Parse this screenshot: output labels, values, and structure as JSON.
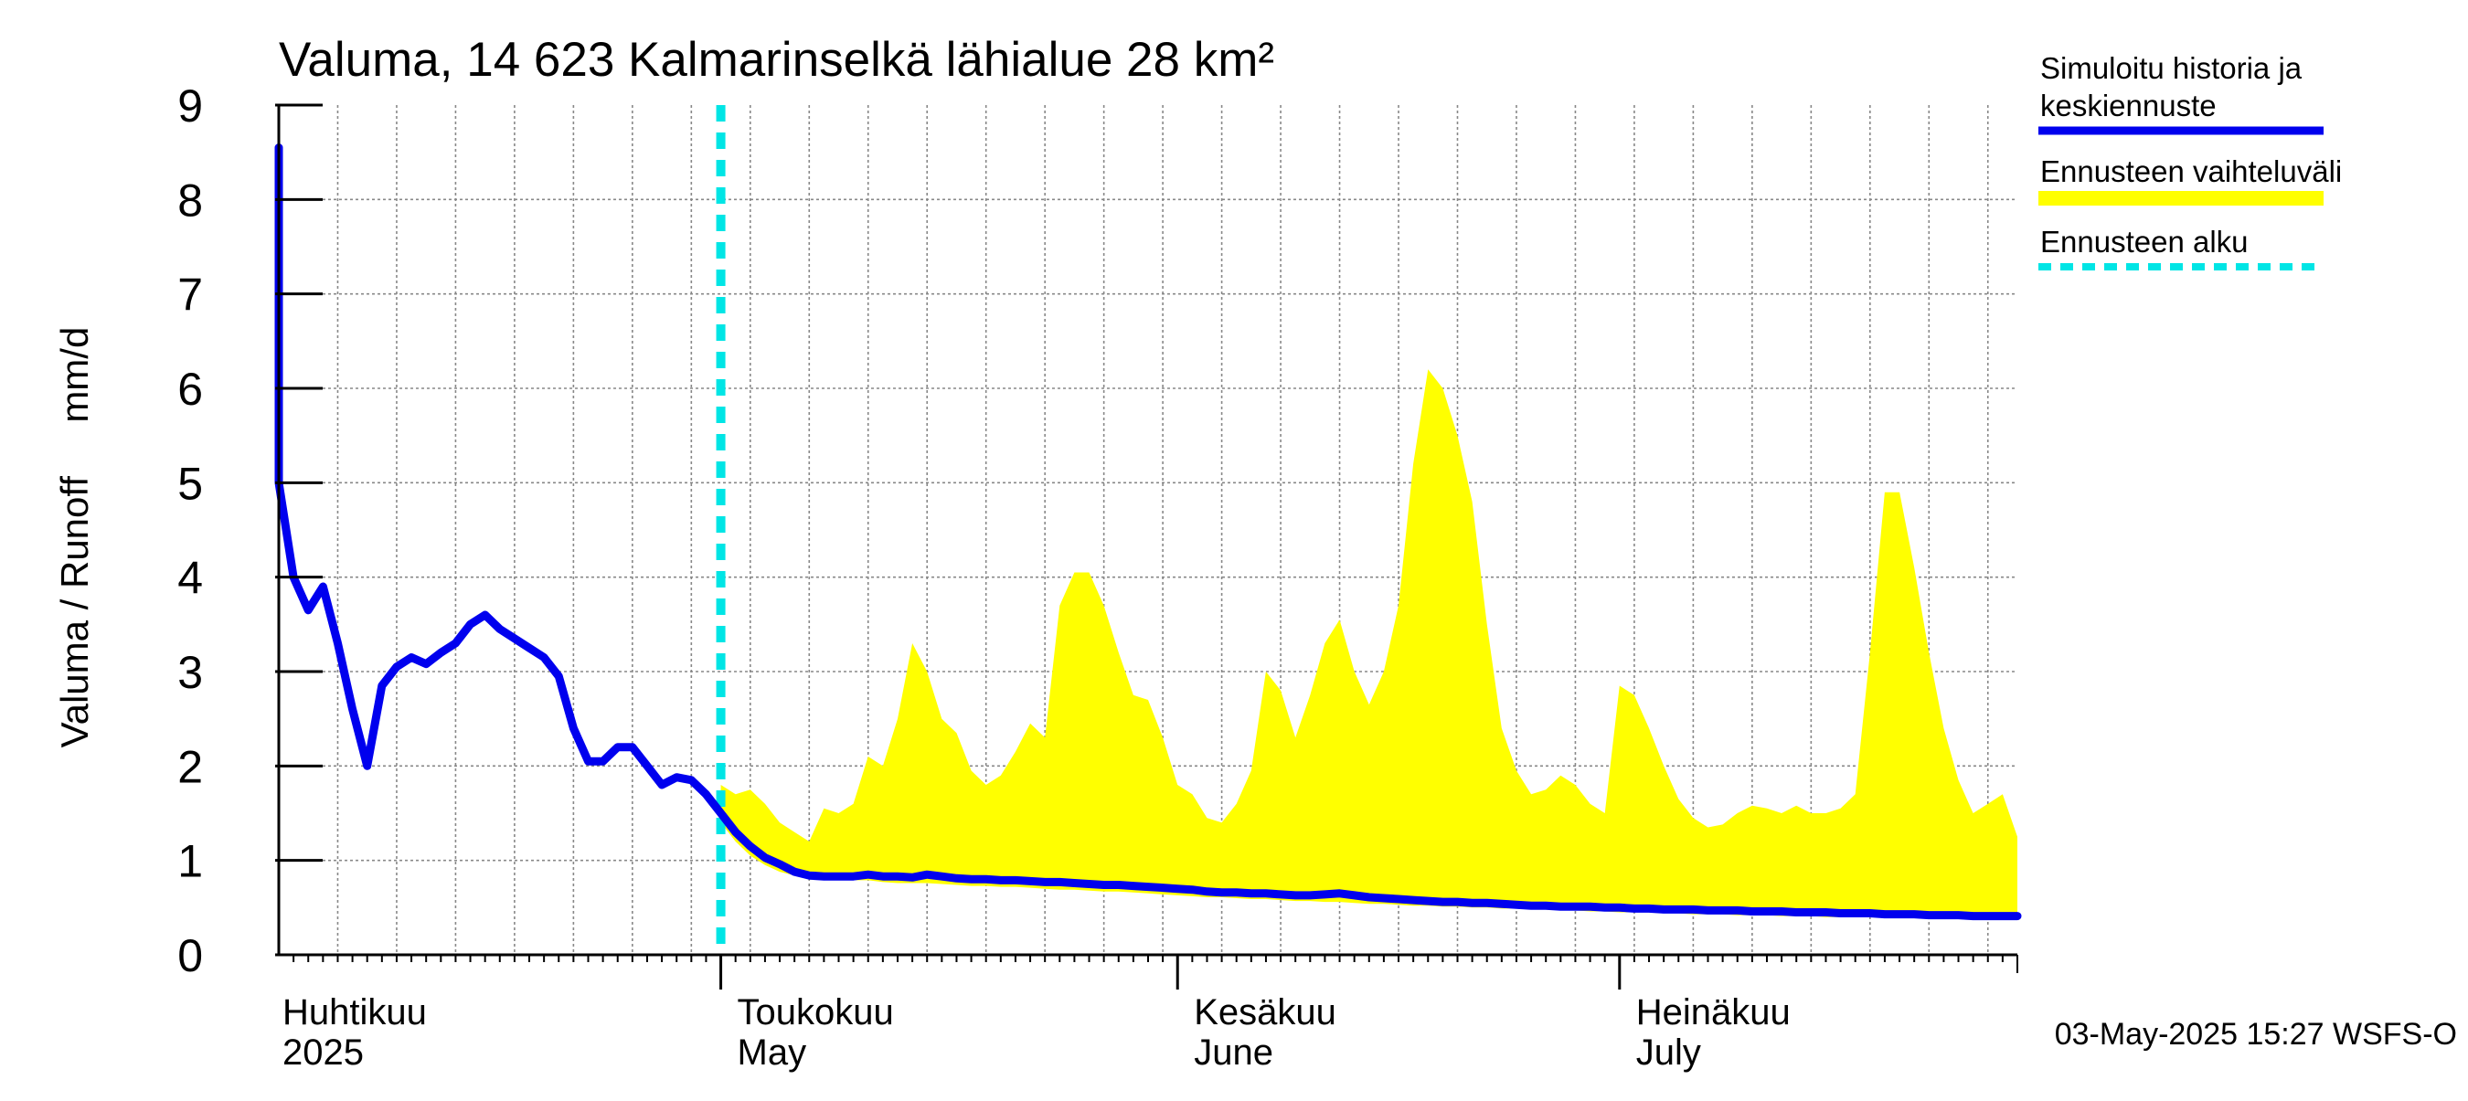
{
  "chart_data": {
    "type": "area",
    "title": "Valuma, 14 623 Kalmarinselkä lähialue 28 km²",
    "ylabel": "Valuma / Runoff     mm/d",
    "ylim": [
      0,
      9
    ],
    "y_ticks": [
      "0",
      "1",
      "2",
      "3",
      "4",
      "5",
      "6",
      "7",
      "8",
      "9"
    ],
    "x_range_days": [
      0,
      118
    ],
    "month_labels": [
      {
        "day": 0,
        "fi": "Huhtikuu",
        "en": "2025"
      },
      {
        "day": 30,
        "fi": "Toukokuu",
        "en": "May"
      },
      {
        "day": 61,
        "fi": "Kesäkuu",
        "en": "June"
      },
      {
        "day": 91,
        "fi": "Heinäkuu",
        "en": "July"
      }
    ],
    "forecast_start_day": 30,
    "series": [
      {
        "name": "Simuloitu historia ja keskiennuste",
        "color": "#0000ee",
        "points": [
          [
            -2,
            8.55
          ],
          [
            0,
            5.0
          ],
          [
            1,
            4.0
          ],
          [
            2,
            3.65
          ],
          [
            3,
            3.9
          ],
          [
            4,
            3.3
          ],
          [
            5,
            2.6
          ],
          [
            6,
            2.0
          ],
          [
            7,
            2.85
          ],
          [
            8,
            3.05
          ],
          [
            9,
            3.15
          ],
          [
            10,
            3.08
          ],
          [
            11,
            3.2
          ],
          [
            12,
            3.3
          ],
          [
            13,
            3.5
          ],
          [
            14,
            3.6
          ],
          [
            15,
            3.45
          ],
          [
            16,
            3.35
          ],
          [
            17,
            3.25
          ],
          [
            18,
            3.15
          ],
          [
            19,
            2.95
          ],
          [
            20,
            2.4
          ],
          [
            21,
            2.05
          ],
          [
            22,
            2.05
          ],
          [
            23,
            2.2
          ],
          [
            24,
            2.2
          ],
          [
            25,
            2.0
          ],
          [
            26,
            1.8
          ],
          [
            27,
            1.88
          ],
          [
            28,
            1.85
          ],
          [
            29,
            1.7
          ],
          [
            30,
            1.5
          ],
          [
            31,
            1.3
          ],
          [
            32,
            1.15
          ],
          [
            33,
            1.03
          ],
          [
            34,
            0.96
          ],
          [
            35,
            0.88
          ],
          [
            36,
            0.84
          ],
          [
            37,
            0.83
          ],
          [
            38,
            0.83
          ],
          [
            39,
            0.83
          ],
          [
            40,
            0.85
          ],
          [
            41,
            0.83
          ],
          [
            42,
            0.83
          ],
          [
            43,
            0.82
          ],
          [
            44,
            0.85
          ],
          [
            45,
            0.83
          ],
          [
            46,
            0.81
          ],
          [
            47,
            0.8
          ],
          [
            48,
            0.8
          ],
          [
            49,
            0.79
          ],
          [
            50,
            0.79
          ],
          [
            51,
            0.78
          ],
          [
            52,
            0.77
          ],
          [
            53,
            0.77
          ],
          [
            54,
            0.76
          ],
          [
            55,
            0.75
          ],
          [
            56,
            0.74
          ],
          [
            57,
            0.74
          ],
          [
            58,
            0.73
          ],
          [
            59,
            0.72
          ],
          [
            60,
            0.71
          ],
          [
            61,
            0.7
          ],
          [
            62,
            0.69
          ],
          [
            63,
            0.67
          ],
          [
            64,
            0.66
          ],
          [
            65,
            0.66
          ],
          [
            66,
            0.65
          ],
          [
            67,
            0.65
          ],
          [
            68,
            0.64
          ],
          [
            69,
            0.63
          ],
          [
            70,
            0.63
          ],
          [
            71,
            0.64
          ],
          [
            72,
            0.65
          ],
          [
            73,
            0.63
          ],
          [
            74,
            0.61
          ],
          [
            75,
            0.6
          ],
          [
            76,
            0.59
          ],
          [
            77,
            0.58
          ],
          [
            78,
            0.57
          ],
          [
            79,
            0.56
          ],
          [
            80,
            0.56
          ],
          [
            81,
            0.55
          ],
          [
            82,
            0.55
          ],
          [
            83,
            0.54
          ],
          [
            84,
            0.53
          ],
          [
            85,
            0.52
          ],
          [
            86,
            0.52
          ],
          [
            87,
            0.51
          ],
          [
            88,
            0.51
          ],
          [
            89,
            0.51
          ],
          [
            90,
            0.5
          ],
          [
            91,
            0.5
          ],
          [
            92,
            0.49
          ],
          [
            93,
            0.49
          ],
          [
            94,
            0.48
          ],
          [
            95,
            0.48
          ],
          [
            96,
            0.48
          ],
          [
            97,
            0.47
          ],
          [
            98,
            0.47
          ],
          [
            99,
            0.47
          ],
          [
            100,
            0.46
          ],
          [
            101,
            0.46
          ],
          [
            102,
            0.46
          ],
          [
            103,
            0.45
          ],
          [
            104,
            0.45
          ],
          [
            105,
            0.45
          ],
          [
            106,
            0.44
          ],
          [
            107,
            0.44
          ],
          [
            108,
            0.44
          ],
          [
            109,
            0.43
          ],
          [
            110,
            0.43
          ],
          [
            111,
            0.43
          ],
          [
            112,
            0.42
          ],
          [
            113,
            0.42
          ],
          [
            114,
            0.42
          ],
          [
            115,
            0.41
          ],
          [
            116,
            0.41
          ],
          [
            117,
            0.41
          ],
          [
            118,
            0.41
          ]
        ]
      },
      {
        "name": "Ennusteen vaihteluväli",
        "color": "#ffff00",
        "x": [
          30,
          31,
          32,
          33,
          34,
          35,
          36,
          37,
          38,
          39,
          40,
          41,
          42,
          43,
          44,
          45,
          46,
          47,
          48,
          49,
          50,
          51,
          52,
          53,
          54,
          55,
          56,
          57,
          58,
          59,
          60,
          61,
          62,
          63,
          64,
          65,
          66,
          67,
          68,
          69,
          70,
          71,
          72,
          73,
          74,
          75,
          76,
          77,
          78,
          79,
          80,
          81,
          82,
          83,
          84,
          85,
          86,
          87,
          88,
          89,
          90,
          91,
          92,
          93,
          94,
          95,
          96,
          97,
          98,
          99,
          100,
          101,
          102,
          103,
          104,
          105,
          106,
          107,
          108,
          109,
          110,
          111,
          112,
          113,
          114,
          115,
          116,
          117,
          118
        ],
        "upper": [
          1.8,
          1.7,
          1.75,
          1.6,
          1.4,
          1.3,
          1.2,
          1.55,
          1.5,
          1.6,
          2.1,
          2.0,
          2.5,
          3.3,
          3.0,
          2.5,
          2.35,
          1.95,
          1.8,
          1.9,
          2.15,
          2.45,
          2.3,
          3.7,
          4.05,
          4.05,
          3.7,
          3.2,
          2.75,
          2.7,
          2.3,
          1.8,
          1.7,
          1.45,
          1.4,
          1.6,
          1.95,
          3.0,
          2.8,
          2.3,
          2.75,
          3.3,
          3.55,
          3.0,
          2.65,
          3.0,
          3.7,
          5.2,
          6.2,
          6.0,
          5.5,
          4.8,
          3.5,
          2.4,
          1.95,
          1.7,
          1.75,
          1.9,
          1.8,
          1.6,
          1.5,
          2.85,
          2.75,
          2.4,
          2.0,
          1.65,
          1.45,
          1.35,
          1.38,
          1.5,
          1.58,
          1.55,
          1.5,
          1.58,
          1.5,
          1.5,
          1.55,
          1.7,
          3.2,
          4.9,
          4.9,
          4.1,
          3.2,
          2.4,
          1.85,
          1.5,
          1.6,
          1.7,
          1.25
        ],
        "lower": [
          1.4,
          1.2,
          1.05,
          0.95,
          0.88,
          0.84,
          0.81,
          0.8,
          0.79,
          0.79,
          0.79,
          0.77,
          0.76,
          0.76,
          0.76,
          0.75,
          0.74,
          0.73,
          0.73,
          0.72,
          0.72,
          0.71,
          0.7,
          0.69,
          0.69,
          0.68,
          0.67,
          0.67,
          0.66,
          0.65,
          0.64,
          0.63,
          0.62,
          0.61,
          0.61,
          0.6,
          0.59,
          0.59,
          0.58,
          0.57,
          0.57,
          0.56,
          0.56,
          0.55,
          0.54,
          0.54,
          0.53,
          0.52,
          0.52,
          0.51,
          0.51,
          0.5,
          0.5,
          0.49,
          0.49,
          0.48,
          0.48,
          0.47,
          0.47,
          0.46,
          0.46,
          0.45,
          0.45,
          0.45,
          0.44,
          0.44,
          0.43,
          0.43,
          0.43,
          0.42,
          0.42,
          0.42,
          0.41,
          0.41,
          0.41,
          0.4,
          0.4,
          0.4,
          0.4,
          0.39,
          0.39,
          0.39,
          0.38,
          0.38,
          0.38,
          0.38,
          0.37,
          0.37,
          0.37
        ]
      }
    ],
    "legend": [
      {
        "label": "Simuloitu historia ja keskiennuste",
        "line1": "Simuloitu historia ja",
        "line2": "keskiennuste",
        "color": "#0000ee",
        "style": "solid"
      },
      {
        "label": "Ennusteen vaihteluväli",
        "line1": "Ennusteen vaihteluväli",
        "color": "#ffff00",
        "style": "solid"
      },
      {
        "label": "Ennusteen alku",
        "line1": "Ennusteen alku",
        "color": "#00e5e5",
        "style": "dashed"
      }
    ],
    "legend_position": "right",
    "grid": true,
    "footer": "03-May-2025 15:27 WSFS-O"
  }
}
